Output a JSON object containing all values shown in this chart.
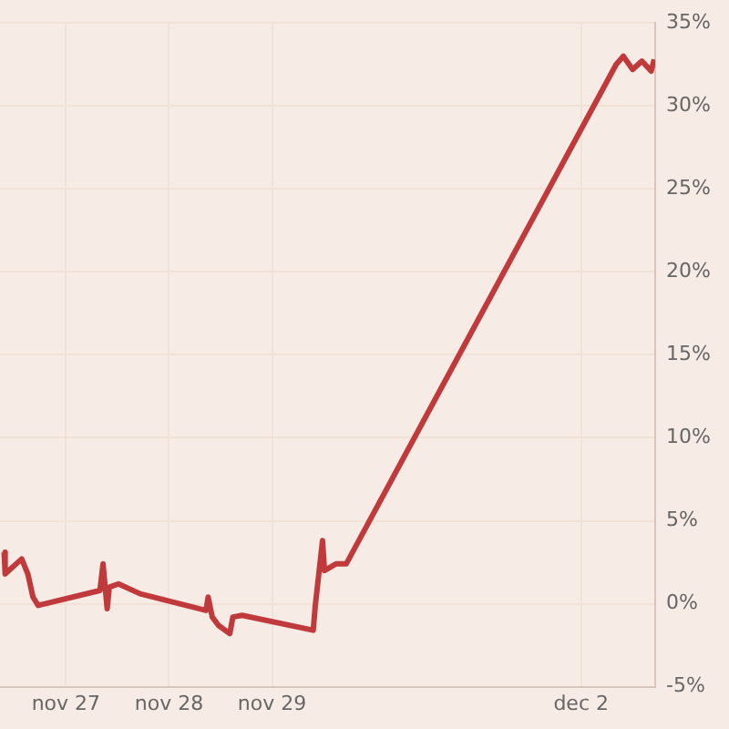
{
  "chart_data": {
    "type": "line",
    "x": [
      "--11-26T09:36",
      "--11-26T09:50",
      "--11-26T13:41",
      "--11-26T15:07",
      "--11-26T16:19",
      "--11-26T17:31",
      "--11-27T07:55",
      "--11-27T08:38",
      "--11-27T09:36",
      "--11-27T10:05",
      "--11-27T12:14",
      "--11-27T17:17",
      "--11-28T08:38",
      "--11-28T09:07",
      "--11-28T10:05",
      "--11-28T11:31",
      "--11-28T14:10",
      "--11-28T14:53",
      "--11-28T17:02",
      "--11-29T09:36",
      "--11-29T10:05",
      "--11-29T11:46",
      "--11-29T12:14",
      "--11-29T14:53",
      "--11-29T17:17",
      "--12-02T08:10",
      "--12-02T09:50",
      "--12-02T12:00",
      "--12-02T14:10",
      "--12-02T16:19",
      "--12-02T17:02"
    ],
    "series": [
      {
        "color": "#c0393b",
        "values": [
          3.1,
          1.8,
          2.7,
          1.8,
          0.4,
          -0.1,
          0.8,
          2.4,
          -0.3,
          1.0,
          1.2,
          0.6,
          -0.4,
          0.4,
          -0.8,
          -1.3,
          -1.8,
          -0.8,
          -0.7,
          -1.6,
          -0.1,
          3.8,
          2.0,
          2.4,
          2.4,
          32.5,
          33.0,
          32.2,
          32.7,
          32.1,
          32.8
        ]
      }
    ],
    "xlim": [
      "--11-26T08:38",
      "--12-02T17:17"
    ],
    "xticks": [
      {
        "value": "--11-27",
        "label": "nov 27"
      },
      {
        "value": "--11-28",
        "label": "nov 28"
      },
      {
        "value": "--11-29",
        "label": "nov 29"
      },
      {
        "value": "--12-02",
        "label": "dec 2"
      }
    ],
    "ylim": [
      -5,
      35
    ],
    "yticks": [
      {
        "value": -5,
        "label": "-5%"
      },
      {
        "value": 0,
        "label": "0%"
      },
      {
        "value": 5,
        "label": "5%"
      },
      {
        "value": 10,
        "label": "10%"
      },
      {
        "value": 15,
        "label": "15%"
      },
      {
        "value": 20,
        "label": "20%"
      },
      {
        "value": 25,
        "label": "25%"
      },
      {
        "value": 30,
        "label": "30%"
      },
      {
        "value": 35,
        "label": "35%"
      }
    ],
    "grid": true,
    "legend": false,
    "marker": "none",
    "line_style": "solid"
  }
}
